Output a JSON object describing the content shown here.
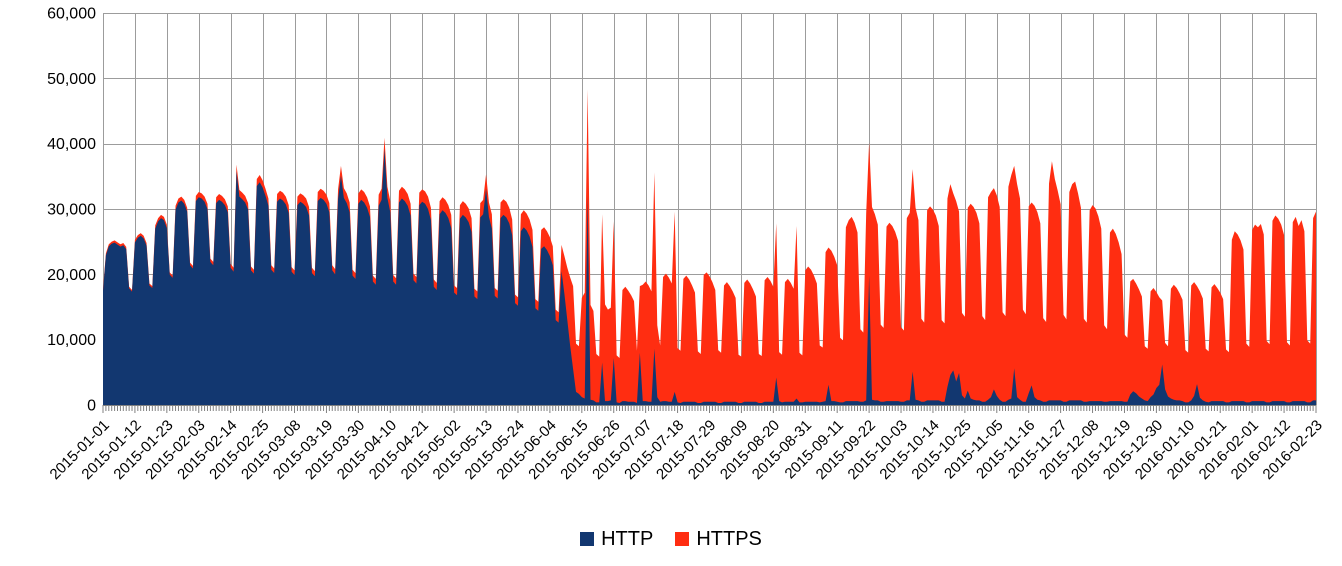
{
  "legend": {
    "items": [
      {
        "label": "HTTP",
        "color": "#123770"
      },
      {
        "label": "HTTPS",
        "color": "#FF2D11"
      }
    ]
  },
  "chart_data": {
    "type": "area",
    "stacked": true,
    "title": "",
    "xlabel": "",
    "ylabel": "",
    "x_start_date": "2015-01-01",
    "x_end_date": "2016-02-23",
    "x_tick_interval_days": 11,
    "x_minor_tick_interval_days": 1,
    "ylim": [
      0,
      60000
    ],
    "y_ticks": [
      0,
      10000,
      20000,
      30000,
      40000,
      50000,
      60000
    ],
    "y_tick_labels": [
      "0",
      "10,000",
      "20,000",
      "30,000",
      "40,000",
      "50,000",
      "60,000"
    ],
    "grid": true,
    "legend_position": "bottom",
    "colors": {
      "grid": "#9c9c9c",
      "axis": "#808080",
      "tick": "#808080",
      "label": "#000000"
    },
    "x_tick_labels": [
      "2015-01-01",
      "2015-01-12",
      "2015-01-23",
      "2015-02-03",
      "2015-02-14",
      "2015-02-25",
      "2015-03-08",
      "2015-03-19",
      "2015-03-30",
      "2015-04-10",
      "2015-04-21",
      "2015-05-02",
      "2015-05-13",
      "2015-05-24",
      "2015-06-04",
      "2015-06-15",
      "2015-06-26",
      "2015-07-07",
      "2015-07-18",
      "2015-07-29",
      "2015-08-09",
      "2015-08-20",
      "2015-08-31",
      "2015-09-11",
      "2015-09-22",
      "2015-10-03",
      "2015-10-14",
      "2015-10-25",
      "2015-11-05",
      "2015-11-16",
      "2015-11-27",
      "2015-12-08",
      "2015-12-19",
      "2015-12-30",
      "2016-01-10",
      "2016-01-21",
      "2016-02-01",
      "2016-02-12",
      "2016-02-23"
    ],
    "series": [
      {
        "name": "HTTP",
        "color": "#123770",
        "values": [
          17500,
          22900,
          24300,
          24700,
          24850,
          24550,
          24250,
          24450,
          23850,
          17850,
          17350,
          24900,
          25600,
          25900,
          25500,
          24400,
          18300,
          17900,
          27000,
          28100,
          28600,
          28300,
          27100,
          19950,
          19450,
          29900,
          31000,
          31300,
          30800,
          29600,
          21400,
          20900,
          31200,
          31800,
          31600,
          31100,
          30000,
          21900,
          21400,
          30900,
          31400,
          31100,
          30600,
          29500,
          21000,
          20400,
          35800,
          31900,
          31500,
          31000,
          29900,
          20600,
          20100,
          33500,
          34100,
          33300,
          32000,
          30500,
          20700,
          20200,
          31100,
          31600,
          31300,
          30700,
          29400,
          20400,
          19900,
          30600,
          31100,
          30800,
          30300,
          29000,
          20200,
          19700,
          31200,
          31700,
          31400,
          30800,
          29500,
          20600,
          20000,
          31500,
          35100,
          31700,
          30900,
          29500,
          19800,
          19300,
          30800,
          31400,
          31000,
          30200,
          28800,
          18900,
          18400,
          30500,
          31400,
          39200,
          31700,
          29500,
          18900,
          18400,
          31000,
          31600,
          31200,
          30500,
          29000,
          19100,
          18600,
          30600,
          31100,
          30800,
          30000,
          28300,
          18100,
          17600,
          29200,
          29800,
          29400,
          28600,
          27100,
          17200,
          16800,
          28500,
          29100,
          28700,
          28000,
          26500,
          16600,
          16200,
          28700,
          29200,
          33100,
          28800,
          27000,
          16700,
          16300,
          28600,
          29100,
          28700,
          27800,
          26000,
          15600,
          15200,
          26600,
          27200,
          26700,
          25800,
          24200,
          14800,
          14400,
          23900,
          24300,
          23700,
          22800,
          21400,
          13000,
          12600,
          20500,
          17000,
          13000,
          9000,
          5500,
          2000,
          1700,
          1200,
          1000,
          32000,
          800,
          700,
          400,
          400,
          6500,
          600,
          600,
          700,
          7200,
          400,
          300,
          600,
          600,
          500,
          500,
          500,
          300,
          8000,
          600,
          600,
          500,
          500,
          8600,
          1200,
          500,
          600,
          600,
          500,
          500,
          2000,
          400,
          300,
          500,
          500,
          500,
          500,
          500,
          300,
          300,
          500,
          500,
          500,
          500,
          500,
          300,
          300,
          500,
          500,
          500,
          500,
          500,
          300,
          300,
          500,
          500,
          500,
          500,
          500,
          300,
          300,
          500,
          500,
          500,
          500,
          4200,
          600,
          400,
          500,
          500,
          500,
          500,
          1000,
          400,
          400,
          500,
          500,
          500,
          500,
          500,
          400,
          500,
          600,
          3100,
          600,
          600,
          500,
          400,
          400,
          600,
          600,
          600,
          600,
          600,
          500,
          500,
          700,
          19800,
          800,
          700,
          700,
          500,
          500,
          600,
          600,
          600,
          600,
          600,
          500,
          500,
          700,
          700,
          5100,
          800,
          700,
          500,
          500,
          700,
          700,
          700,
          700,
          700,
          500,
          500,
          2800,
          4600,
          5300,
          3600,
          4900,
          1500,
          1000,
          2200,
          1000,
          800,
          700,
          700,
          500,
          500,
          800,
          1200,
          2400,
          1400,
          800,
          500,
          500,
          800,
          1000,
          5600,
          1200,
          800,
          500,
          500,
          1800,
          3000,
          1200,
          800,
          700,
          500,
          500,
          700,
          700,
          700,
          700,
          700,
          500,
          500,
          700,
          700,
          700,
          700,
          700,
          500,
          500,
          600,
          600,
          600,
          600,
          600,
          500,
          500,
          600,
          600,
          600,
          600,
          600,
          500,
          500,
          1600,
          2100,
          1800,
          1300,
          1000,
          700,
          600,
          1200,
          1600,
          2600,
          3100,
          6200,
          2400,
          1300,
          1000,
          800,
          700,
          700,
          600,
          400,
          400,
          700,
          1400,
          3200,
          1100,
          700,
          500,
          400,
          600,
          600,
          600,
          600,
          600,
          400,
          400,
          600,
          600,
          600,
          600,
          600,
          400,
          400,
          600,
          600,
          600,
          600,
          600,
          400,
          400,
          600,
          600,
          600,
          600,
          600,
          400,
          400,
          600,
          600,
          600,
          600,
          600,
          400,
          400,
          700,
          700
        ]
      },
      {
        "name": "HTTPS",
        "color": "#FF2D11",
        "values": [
          300,
          300,
          300,
          300,
          350,
          350,
          350,
          350,
          350,
          250,
          250,
          400,
          400,
          400,
          400,
          400,
          300,
          300,
          500,
          500,
          500,
          500,
          500,
          350,
          350,
          600,
          600,
          600,
          600,
          600,
          400,
          400,
          800,
          800,
          800,
          800,
          800,
          500,
          500,
          900,
          900,
          900,
          900,
          900,
          600,
          600,
          1000,
          1000,
          1000,
          1000,
          1000,
          600,
          600,
          1100,
          1100,
          1100,
          1100,
          1100,
          700,
          700,
          1200,
          1200,
          1200,
          1200,
          1200,
          700,
          700,
          1300,
          1300,
          1300,
          1300,
          1300,
          800,
          800,
          1400,
          1400,
          1400,
          1400,
          1400,
          800,
          800,
          1500,
          1500,
          1500,
          1500,
          1500,
          900,
          900,
          1600,
          1600,
          1600,
          1600,
          1600,
          900,
          900,
          1700,
          1700,
          1700,
          1700,
          1700,
          1000,
          1000,
          1800,
          1800,
          1800,
          1800,
          1800,
          1000,
          1000,
          1900,
          1900,
          1900,
          1900,
          1900,
          1100,
          1100,
          2000,
          2000,
          2000,
          2000,
          2000,
          1100,
          1100,
          2100,
          2100,
          2100,
          2100,
          2100,
          1200,
          1200,
          2200,
          2200,
          2200,
          2200,
          2200,
          1200,
          1200,
          2400,
          2400,
          2400,
          2400,
          2400,
          1300,
          1300,
          2600,
          2600,
          2600,
          2600,
          2600,
          1400,
          1400,
          2900,
          2900,
          2900,
          2900,
          2900,
          1600,
          1600,
          4000,
          5800,
          8000,
          10500,
          12700,
          7400,
          7300,
          15200,
          16200,
          16300,
          14500,
          13700,
          7400,
          7000,
          22700,
          14800,
          14000,
          14200,
          20900,
          7200,
          6900,
          17000,
          17500,
          17000,
          16300,
          15400,
          8000,
          10200,
          17800,
          18300,
          17800,
          16900,
          27000,
          11000,
          8600,
          19000,
          19500,
          19000,
          18100,
          27600,
          8300,
          8000,
          18800,
          19300,
          18700,
          17800,
          16700,
          7900,
          7500,
          19400,
          19800,
          19200,
          18300,
          17100,
          8100,
          7700,
          17800,
          18300,
          17700,
          16900,
          15900,
          7400,
          7100,
          18200,
          18700,
          18100,
          17200,
          16100,
          7500,
          7200,
          18600,
          19100,
          18500,
          17600,
          23600,
          7500,
          7300,
          18300,
          18800,
          18200,
          17300,
          26400,
          7600,
          7200,
          20100,
          20700,
          20200,
          19300,
          18100,
          8700,
          8300,
          22800,
          21000,
          23000,
          22100,
          20900,
          9900,
          9500,
          26600,
          27700,
          28200,
          27300,
          25800,
          11100,
          10600,
          28700,
          20400,
          29500,
          28500,
          26900,
          11800,
          11300,
          26700,
          27300,
          26800,
          25900,
          24500,
          11400,
          10900,
          27900,
          28700,
          31000,
          29400,
          27600,
          12700,
          12100,
          29100,
          29700,
          29200,
          28300,
          26700,
          12500,
          12000,
          28800,
          29200,
          27100,
          27600,
          24700,
          12600,
          12500,
          28000,
          29800,
          29500,
          28700,
          27100,
          13100,
          12500,
          31000,
          31400,
          30800,
          30700,
          29500,
          13700,
          13100,
          32600,
          34200,
          31000,
          32600,
          30800,
          14100,
          13400,
          28600,
          28000,
          29300,
          28700,
          27100,
          12800,
          12200,
          33200,
          36600,
          33900,
          32100,
          30000,
          13300,
          12600,
          31900,
          33100,
          33500,
          31700,
          29500,
          12700,
          12100,
          29200,
          30000,
          29500,
          28300,
          26400,
          11700,
          11100,
          25800,
          26400,
          25600,
          24300,
          22500,
          10300,
          9800,
          17300,
          17200,
          16800,
          16400,
          15600,
          8300,
          8000,
          16200,
          16300,
          14700,
          13400,
          9800,
          7100,
          7700,
          16800,
          17600,
          17200,
          16400,
          15500,
          8000,
          7600,
          17600,
          17400,
          15000,
          16300,
          15600,
          8100,
          7800,
          17400,
          17900,
          17300,
          16600,
          15600,
          8100,
          7700,
          24700,
          26000,
          25500,
          24600,
          23200,
          9000,
          8500,
          26200,
          27000,
          26600,
          27100,
          25500,
          9400,
          8900,
          27600,
          28400,
          27900,
          27000,
          25400,
          9200,
          8700,
          27400,
          28200,
          26800,
          27700,
          26000,
          9500,
          9000,
          27900,
          28900
        ]
      }
    ]
  }
}
